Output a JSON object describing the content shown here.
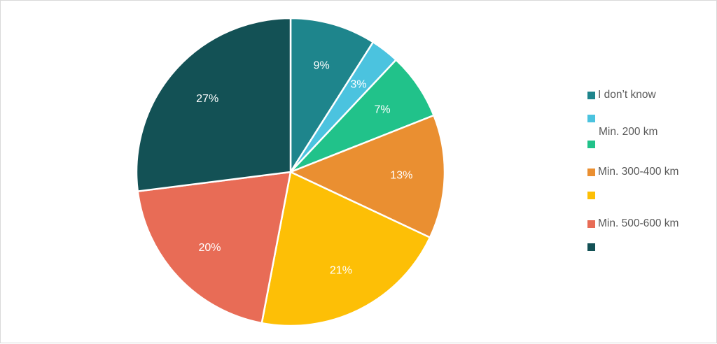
{
  "chart_data": {
    "type": "pie",
    "slices": [
      {
        "label": "I don’t know",
        "value": 9,
        "data_label": "9%",
        "color": "#1E858C"
      },
      {
        "label": "Min. 200 km",
        "value": 3,
        "data_label": "3%",
        "color": "#4BC3DF"
      },
      {
        "label": "",
        "value": 7,
        "data_label": "7%",
        "color": "#21C28A"
      },
      {
        "label": "Min. 300-400 km",
        "value": 13,
        "data_label": "13%",
        "color": "#EA8F31"
      },
      {
        "label": "",
        "value": 21,
        "data_label": "21%",
        "color": "#FDBF06"
      },
      {
        "label": "Min. 500-600 km",
        "value": 20,
        "data_label": "20%",
        "color": "#E86C56"
      },
      {
        "label": "",
        "value": 27,
        "data_label": "27%",
        "color": "#135155"
      }
    ],
    "start_angle_deg": 0,
    "direction": "clockwise",
    "legend_position": "right"
  }
}
